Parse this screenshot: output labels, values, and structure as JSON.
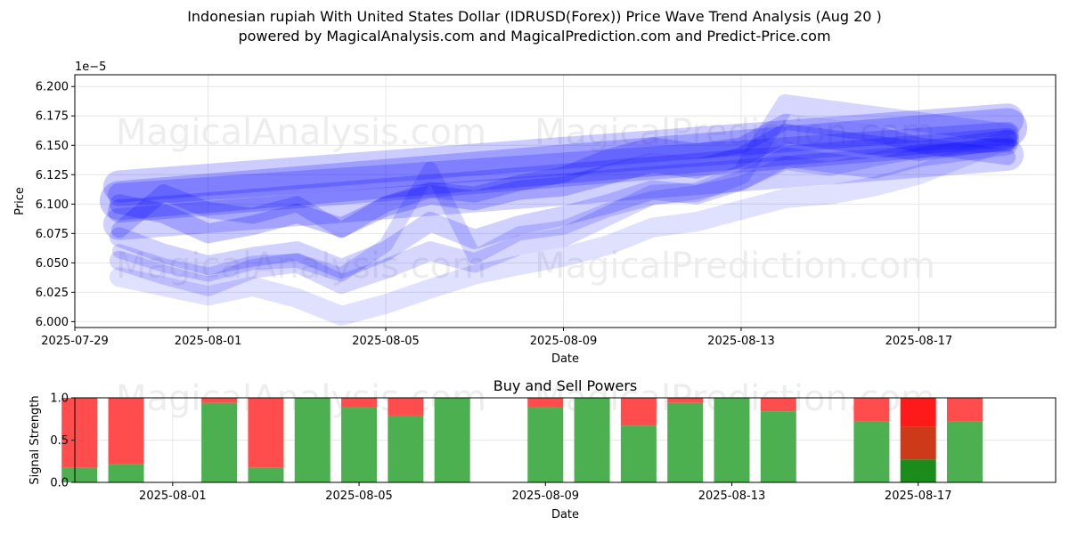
{
  "title_line1": "Indonesian rupiah With United States Dollar (IDRUSD(Forex)) Price Wave Trend Analysis (Aug 20 )",
  "title_line2": "powered by MagicalAnalysis.com and MagicalPrediction.com and Predict-Price.com",
  "watermarks": [
    "MagicalAnalysis.com",
    "MagicalPrediction.com"
  ],
  "chart_data": [
    {
      "type": "line",
      "title": "",
      "xlabel": "Date",
      "ylabel": "Price",
      "y_scale_label": "1e−5",
      "x_tick_labels": [
        "2025-07-29",
        "2025-08-01",
        "2025-08-05",
        "2025-08-09",
        "2025-08-13",
        "2025-08-17"
      ],
      "x_tick_dates": [
        "2025-07-29",
        "2025-08-01",
        "2025-08-05",
        "2025-08-09",
        "2025-08-13",
        "2025-08-17"
      ],
      "y_ticks": [
        "6.000",
        "6.025",
        "6.050",
        "6.075",
        "6.100",
        "6.125",
        "6.150",
        "6.175",
        "6.200"
      ],
      "xlim": [
        "2025-07-29",
        "2025-08-19"
      ],
      "ylim": [
        5.995,
        6.21
      ],
      "grid": true,
      "band_color": "#0000ff",
      "series": [
        {
          "x": [
            "2025-07-30",
            "2025-08-19"
          ],
          "y": [
            6.103,
            6.165
          ],
          "width": 44,
          "opacity": 0.22
        },
        {
          "x": [
            "2025-07-30",
            "2025-08-19"
          ],
          "y": [
            6.115,
            6.172
          ],
          "width": 36,
          "opacity": 0.2
        },
        {
          "x": [
            "2025-07-30",
            "2025-08-19"
          ],
          "y": [
            6.083,
            6.142
          ],
          "width": 36,
          "opacity": 0.18
        },
        {
          "x": [
            "2025-07-30",
            "2025-08-19"
          ],
          "y": [
            6.094,
            6.155
          ],
          "width": 26,
          "opacity": 0.2
        },
        {
          "x": [
            "2025-07-30",
            "2025-08-19"
          ],
          "y": [
            6.108,
            6.16
          ],
          "width": 26,
          "opacity": 0.2
        },
        {
          "x": [
            "2025-07-30",
            "2025-07-31",
            "2025-08-01",
            "2025-08-02",
            "2025-08-03",
            "2025-08-04",
            "2025-08-05",
            "2025-08-06",
            "2025-08-07",
            "2025-08-08",
            "2025-08-09",
            "2025-08-10",
            "2025-08-11",
            "2025-08-12",
            "2025-08-13",
            "2025-08-14",
            "2025-08-15",
            "2025-08-16",
            "2025-08-17",
            "2025-08-18",
            "2025-08-19"
          ],
          "y": [
            6.1,
            6.092,
            6.075,
            6.082,
            6.092,
            6.08,
            6.098,
            6.108,
            6.103,
            6.112,
            6.115,
            6.125,
            6.135,
            6.13,
            6.14,
            6.16,
            6.155,
            6.15,
            6.145,
            6.15,
            6.155
          ],
          "width": 22,
          "opacity": 0.22
        },
        {
          "x": [
            "2025-07-30",
            "2025-07-31",
            "2025-08-01",
            "2025-08-02",
            "2025-08-03",
            "2025-08-04",
            "2025-08-05",
            "2025-08-06",
            "2025-08-07",
            "2025-08-08",
            "2025-08-09",
            "2025-08-10",
            "2025-08-11",
            "2025-08-12",
            "2025-08-13",
            "2025-08-14",
            "2025-08-15",
            "2025-08-16",
            "2025-08-17",
            "2025-08-18",
            "2025-08-19"
          ],
          "y": [
            6.072,
            6.058,
            6.048,
            6.055,
            6.06,
            6.045,
            6.06,
            6.085,
            6.07,
            6.082,
            6.09,
            6.1,
            6.112,
            6.108,
            6.12,
            6.14,
            6.135,
            6.13,
            6.14,
            6.145,
            6.15
          ],
          "width": 22,
          "opacity": 0.18
        },
        {
          "x": [
            "2025-07-30",
            "2025-07-31",
            "2025-08-01",
            "2025-08-02",
            "2025-08-03",
            "2025-08-04",
            "2025-08-05",
            "2025-08-06",
            "2025-08-07",
            "2025-08-08",
            "2025-08-09",
            "2025-08-10",
            "2025-08-11",
            "2025-08-12",
            "2025-08-13",
            "2025-08-14",
            "2025-08-15",
            "2025-08-16",
            "2025-08-17",
            "2025-08-18",
            "2025-08-19"
          ],
          "y": [
            6.052,
            6.04,
            6.03,
            6.045,
            6.05,
            6.032,
            6.045,
            6.06,
            6.05,
            6.065,
            6.072,
            6.09,
            6.108,
            6.11,
            6.125,
            6.185,
            6.18,
            6.175,
            6.17,
            6.165,
            6.16
          ],
          "width": 22,
          "opacity": 0.16
        },
        {
          "x": [
            "2025-07-30",
            "2025-07-31",
            "2025-08-01",
            "2025-08-02",
            "2025-08-03",
            "2025-08-04",
            "2025-08-05",
            "2025-08-06",
            "2025-08-07",
            "2025-08-08",
            "2025-08-09",
            "2025-08-10",
            "2025-08-11",
            "2025-08-12",
            "2025-08-13",
            "2025-08-14",
            "2025-08-15",
            "2025-08-16",
            "2025-08-17",
            "2025-08-18",
            "2025-08-19"
          ],
          "y": [
            6.038,
            6.03,
            6.022,
            6.03,
            6.02,
            6.005,
            6.015,
            6.028,
            6.04,
            6.048,
            6.055,
            6.065,
            6.08,
            6.085,
            6.095,
            6.105,
            6.108,
            6.115,
            6.125,
            6.14,
            6.155
          ],
          "width": 22,
          "opacity": 0.12
        },
        {
          "x": [
            "2025-07-30",
            "2025-07-31",
            "2025-08-01",
            "2025-08-02",
            "2025-08-03",
            "2025-08-04",
            "2025-08-05",
            "2025-08-06",
            "2025-08-07",
            "2025-08-08",
            "2025-08-09",
            "2025-08-10",
            "2025-08-11",
            "2025-08-12",
            "2025-08-13",
            "2025-08-14",
            "2025-08-15",
            "2025-08-16",
            "2025-08-17",
            "2025-08-18",
            "2025-08-19"
          ],
          "y": [
            6.078,
            6.11,
            6.095,
            6.09,
            6.1,
            6.078,
            6.1,
            6.112,
            6.108,
            6.118,
            6.125,
            6.14,
            6.15,
            6.145,
            6.15,
            6.17,
            6.165,
            6.16,
            6.15,
            6.145,
            6.14
          ],
          "width": 18,
          "opacity": 0.2
        },
        {
          "x": [
            "2025-07-30",
            "2025-07-31",
            "2025-08-01",
            "2025-08-02",
            "2025-08-03",
            "2025-08-04",
            "2025-08-05",
            "2025-08-06",
            "2025-08-07",
            "2025-08-08",
            "2025-08-09",
            "2025-08-10",
            "2025-08-11",
            "2025-08-12",
            "2025-08-13",
            "2025-08-14",
            "2025-08-15",
            "2025-08-16",
            "2025-08-17",
            "2025-08-18",
            "2025-08-19"
          ],
          "y": [
            6.06,
            6.048,
            6.04,
            6.05,
            6.052,
            6.04,
            6.065,
            6.13,
            6.055,
            6.075,
            6.08,
            6.095,
            6.105,
            6.11,
            6.118,
            6.135,
            6.13,
            6.138,
            6.145,
            6.15,
            6.15
          ],
          "width": 16,
          "opacity": 0.16
        }
      ]
    },
    {
      "type": "bar",
      "title": "Buy and Sell Powers",
      "xlabel": "Date",
      "ylabel": "Signal Strength",
      "x_tick_labels": [
        "2025-08-01",
        "2025-08-05",
        "2025-08-09",
        "2025-08-13",
        "2025-08-17"
      ],
      "x_tick_dates": [
        "2025-08-01",
        "2025-08-05",
        "2025-08-09",
        "2025-08-13",
        "2025-08-17"
      ],
      "y_ticks": [
        "0.0",
        "0.5",
        "1.0"
      ],
      "xlim": [
        "2025-07-29",
        "2025-08-19"
      ],
      "ylim": [
        0,
        1
      ],
      "buy_color": "#4caf50",
      "sell_color": "#ff4c4c",
      "days": [
        {
          "x": "2025-07-30",
          "buy": 0.17
        },
        {
          "x": "2025-07-31",
          "buy": 0.22
        },
        {
          "x": "2025-08-02",
          "buy": 0.94
        },
        {
          "x": "2025-08-03",
          "buy": 0.17
        },
        {
          "x": "2025-08-04",
          "buy": 1.0
        },
        {
          "x": "2025-08-05",
          "buy": 0.89
        },
        {
          "x": "2025-08-06",
          "buy": 0.79
        },
        {
          "x": "2025-08-07",
          "buy": 1.0
        },
        {
          "x": "2025-08-09",
          "buy": 0.89
        },
        {
          "x": "2025-08-10",
          "buy": 1.0
        },
        {
          "x": "2025-08-11",
          "buy": 0.67
        },
        {
          "x": "2025-08-12",
          "buy": 0.94
        },
        {
          "x": "2025-08-13",
          "buy": 1.0
        },
        {
          "x": "2025-08-14",
          "buy": 0.84
        },
        {
          "x": "2025-08-16",
          "buy": 0.72
        },
        {
          "x": "2025-08-17",
          "buy": 0.27,
          "mid": 0.66,
          "buy_color": "#1a8c1a",
          "mid_color": "#cc3a1a",
          "sell_color": "#ff1a1a"
        },
        {
          "x": "2025-08-18",
          "buy": 0.72
        }
      ]
    }
  ]
}
